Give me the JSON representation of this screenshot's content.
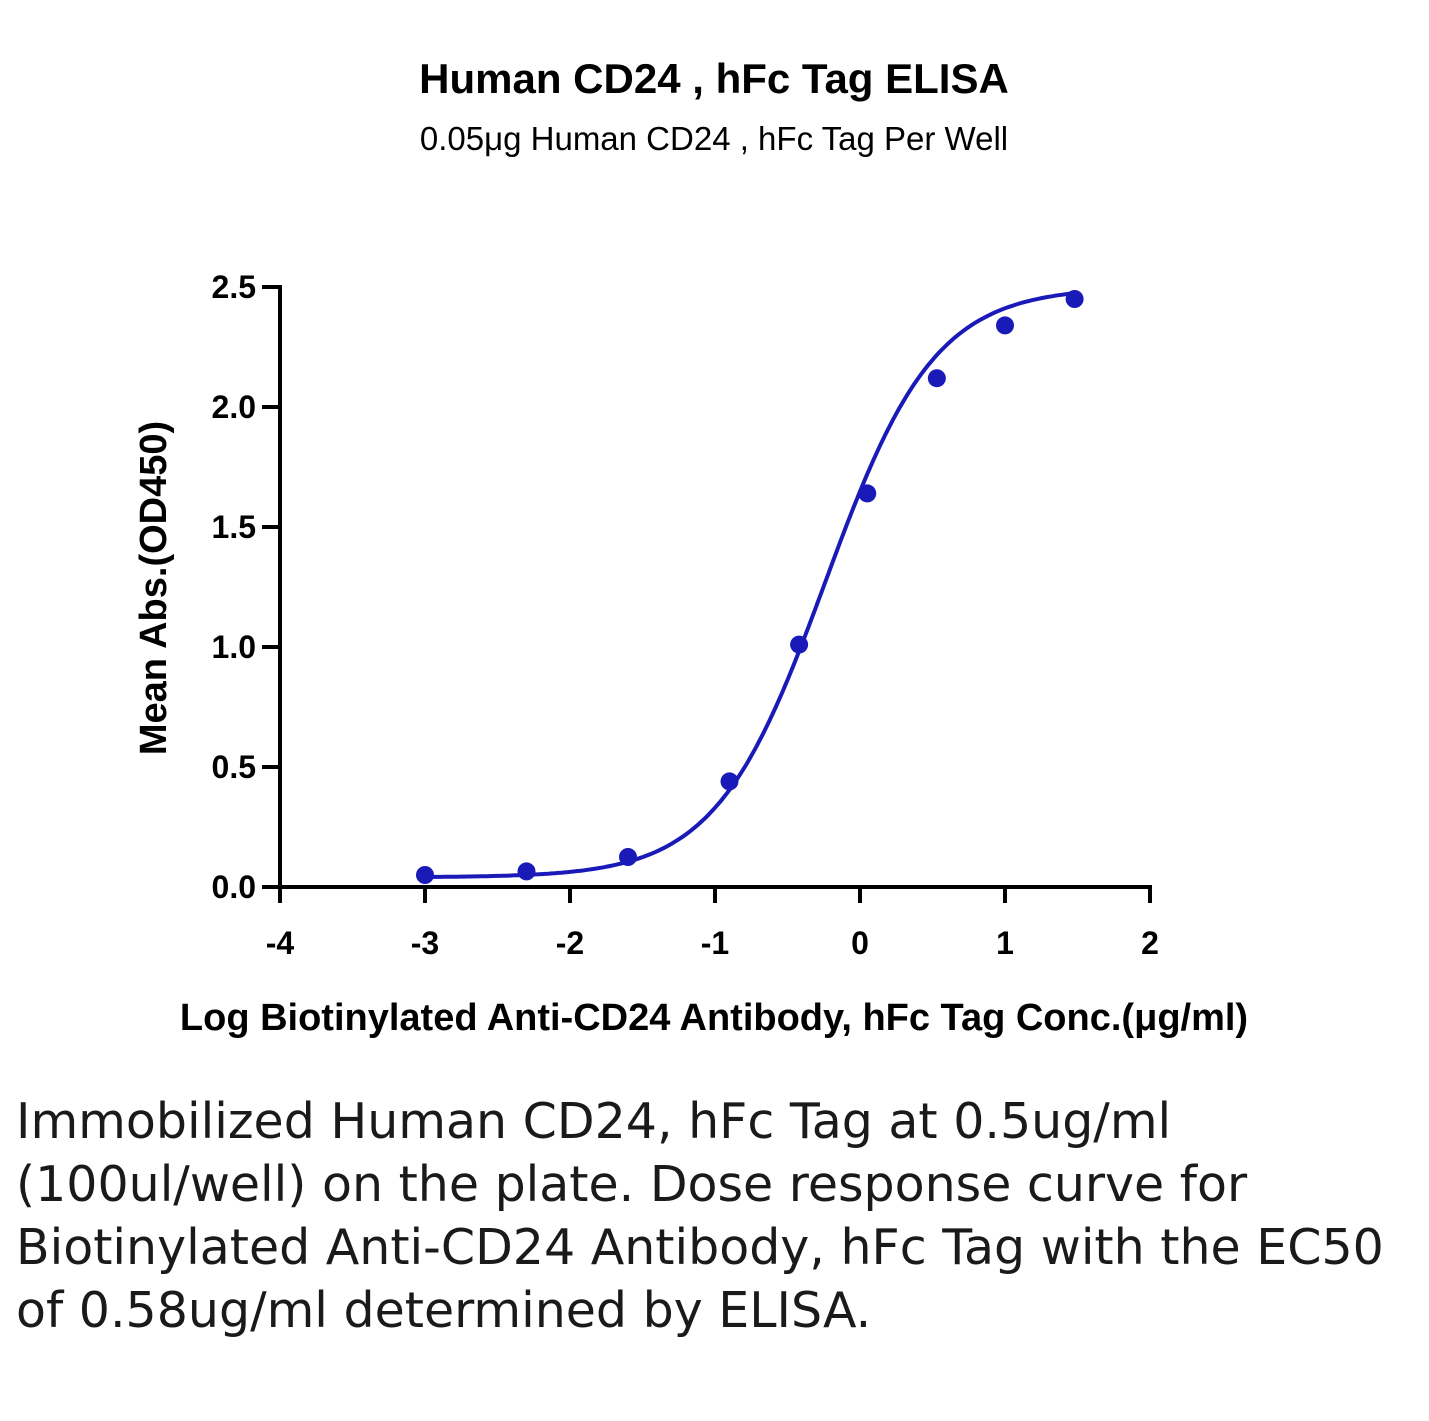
{
  "chart_data": {
    "type": "line",
    "title": "Human CD24 , hFc Tag ELISA",
    "subtitle": "0.05μg Human CD24 , hFc Tag Per Well",
    "xlabel": "Log Biotinylated Anti-CD24 Antibody, hFc Tag Conc.(μg/ml)",
    "ylabel": "Mean Abs.(OD450)",
    "xlim": [
      -4,
      2
    ],
    "ylim": [
      0,
      2.5
    ],
    "x_ticks": [
      -4,
      -3,
      -2,
      -1,
      0,
      1,
      2
    ],
    "x_tick_labels": [
      "-4",
      "-3",
      "-2",
      "-1",
      "0",
      "1",
      "2"
    ],
    "y_ticks": [
      0,
      0.5,
      1.0,
      1.5,
      2.0,
      2.5
    ],
    "y_tick_labels": [
      "0.0",
      "0.5",
      "1.0",
      "1.5",
      "2.0",
      "2.5"
    ],
    "grid": false,
    "series": [
      {
        "color": "#1a1ab8",
        "x": [
          -3.0,
          -2.3,
          -1.6,
          -0.9,
          -0.42,
          0.05,
          0.53,
          1.0,
          1.48
        ],
        "y": [
          0.05,
          0.065,
          0.125,
          0.44,
          1.01,
          1.64,
          2.12,
          2.34,
          2.45
        ]
      }
    ],
    "fit": {
      "bottom": 0.04,
      "top": 2.5,
      "logEC50": -0.24,
      "hill": 1.15,
      "x_range": [
        -3.0,
        1.48
      ]
    }
  },
  "caption": "Immobilized Human CD24, hFc Tag at 0.5ug/ml (100ul/well) on the plate. Dose response curve for Biotinylated Anti-CD24 Antibody, hFc Tag with the EC50 of 0.58ug/ml determined by ELISA."
}
